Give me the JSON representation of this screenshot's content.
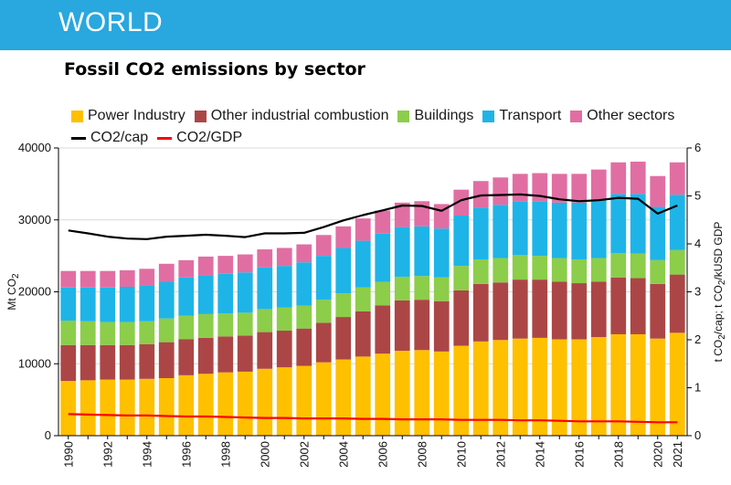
{
  "header": {
    "title": "WORLD"
  },
  "chart_data": {
    "type": "bar",
    "stacked": true,
    "title": "Fossil CO2 emissions by sector",
    "title_main": "Fossil CO",
    "title_sub": "2",
    "title_rest": " emissions by sector",
    "ylabel": "Mt CO2",
    "ylabel_main": "Mt CO",
    "ylabel_sub": "2",
    "y2label": "t CO2/cap; t CO2/kUSD GDP",
    "y2label_parts": [
      "t CO",
      "2",
      "/cap; t CO",
      "2",
      "/kUSD GDP"
    ],
    "ylim": [
      0,
      40000
    ],
    "y2lim": [
      0,
      6
    ],
    "yticks": [
      "0",
      "10000",
      "20000",
      "30000",
      "40000"
    ],
    "y2ticks": [
      "0",
      "1",
      "2",
      "3",
      "4",
      "5",
      "6"
    ],
    "categories": [
      "1990",
      "1991",
      "1992",
      "1993",
      "1994",
      "1995",
      "1996",
      "1997",
      "1998",
      "1999",
      "2000",
      "2001",
      "2002",
      "2003",
      "2004",
      "2005",
      "2006",
      "2007",
      "2008",
      "2009",
      "2010",
      "2011",
      "2012",
      "2013",
      "2014",
      "2015",
      "2016",
      "2017",
      "2018",
      "2019",
      "2020",
      "2021"
    ],
    "xtick_labels": [
      "1990",
      "1992",
      "1994",
      "1996",
      "1998",
      "2000",
      "2002",
      "2004",
      "2006",
      "2008",
      "2010",
      "2012",
      "2014",
      "2016",
      "2018",
      "2020",
      "2021"
    ],
    "series": [
      {
        "name": "Power Industry",
        "color": "#ffc000",
        "values": [
          7600,
          7700,
          7800,
          7800,
          7900,
          8000,
          8400,
          8600,
          8800,
          8900,
          9300,
          9500,
          9700,
          10200,
          10600,
          11000,
          11400,
          11800,
          11900,
          11700,
          12500,
          13100,
          13300,
          13500,
          13600,
          13400,
          13400,
          13700,
          14100,
          14100,
          13500,
          14300
        ]
      },
      {
        "name": "Other industrial combustion",
        "color": "#ac4646",
        "values": [
          5000,
          4900,
          4800,
          4800,
          4800,
          5000,
          5000,
          5000,
          5000,
          5000,
          5100,
          5100,
          5200,
          5500,
          5900,
          6300,
          6700,
          7000,
          7000,
          7000,
          7700,
          8000,
          8000,
          8200,
          8100,
          8000,
          7800,
          7700,
          7900,
          7800,
          7600,
          8100
        ]
      },
      {
        "name": "Buildings",
        "color": "#8ccd4a",
        "values": [
          3400,
          3300,
          3200,
          3200,
          3200,
          3300,
          3300,
          3300,
          3200,
          3200,
          3200,
          3200,
          3200,
          3200,
          3300,
          3300,
          3300,
          3300,
          3300,
          3300,
          3400,
          3400,
          3400,
          3400,
          3300,
          3300,
          3300,
          3300,
          3400,
          3400,
          3300,
          3400
        ]
      },
      {
        "name": "Transport",
        "color": "#1eb4e8",
        "values": [
          4600,
          4700,
          4800,
          4900,
          5000,
          5100,
          5300,
          5400,
          5500,
          5600,
          5800,
          5800,
          6000,
          6100,
          6300,
          6500,
          6700,
          6900,
          6900,
          6800,
          7000,
          7200,
          7400,
          7500,
          7600,
          7700,
          7900,
          8100,
          8200,
          8300,
          7400,
          7700
        ]
      },
      {
        "name": "Other sectors",
        "color": "#e16ea3",
        "values": [
          2300,
          2300,
          2300,
          2300,
          2300,
          2500,
          2400,
          2600,
          2500,
          2500,
          2500,
          2500,
          2500,
          2900,
          3000,
          3100,
          3200,
          3400,
          3500,
          3400,
          3600,
          3700,
          3800,
          3800,
          3900,
          4000,
          4000,
          4200,
          4400,
          4500,
          4300,
          4500
        ]
      }
    ],
    "lines": [
      {
        "name": "CO2/cap",
        "label_main": "CO2/cap",
        "color": "#000000",
        "axis": "right",
        "values": [
          4.28,
          4.22,
          4.15,
          4.11,
          4.1,
          4.15,
          4.17,
          4.19,
          4.17,
          4.14,
          4.22,
          4.22,
          4.23,
          4.35,
          4.49,
          4.6,
          4.7,
          4.8,
          4.79,
          4.69,
          4.91,
          5.01,
          5.02,
          5.03,
          5.0,
          4.93,
          4.89,
          4.91,
          4.96,
          4.94,
          4.63,
          4.8
        ]
      },
      {
        "name": "CO2/GDP",
        "label_main": "CO2/GDP",
        "color": "#ff0000",
        "axis": "right",
        "values": [
          0.45,
          0.44,
          0.43,
          0.42,
          0.42,
          0.41,
          0.4,
          0.4,
          0.39,
          0.38,
          0.37,
          0.37,
          0.36,
          0.36,
          0.36,
          0.35,
          0.35,
          0.34,
          0.34,
          0.34,
          0.33,
          0.33,
          0.33,
          0.32,
          0.32,
          0.31,
          0.3,
          0.3,
          0.3,
          0.29,
          0.28,
          0.28
        ]
      }
    ]
  }
}
